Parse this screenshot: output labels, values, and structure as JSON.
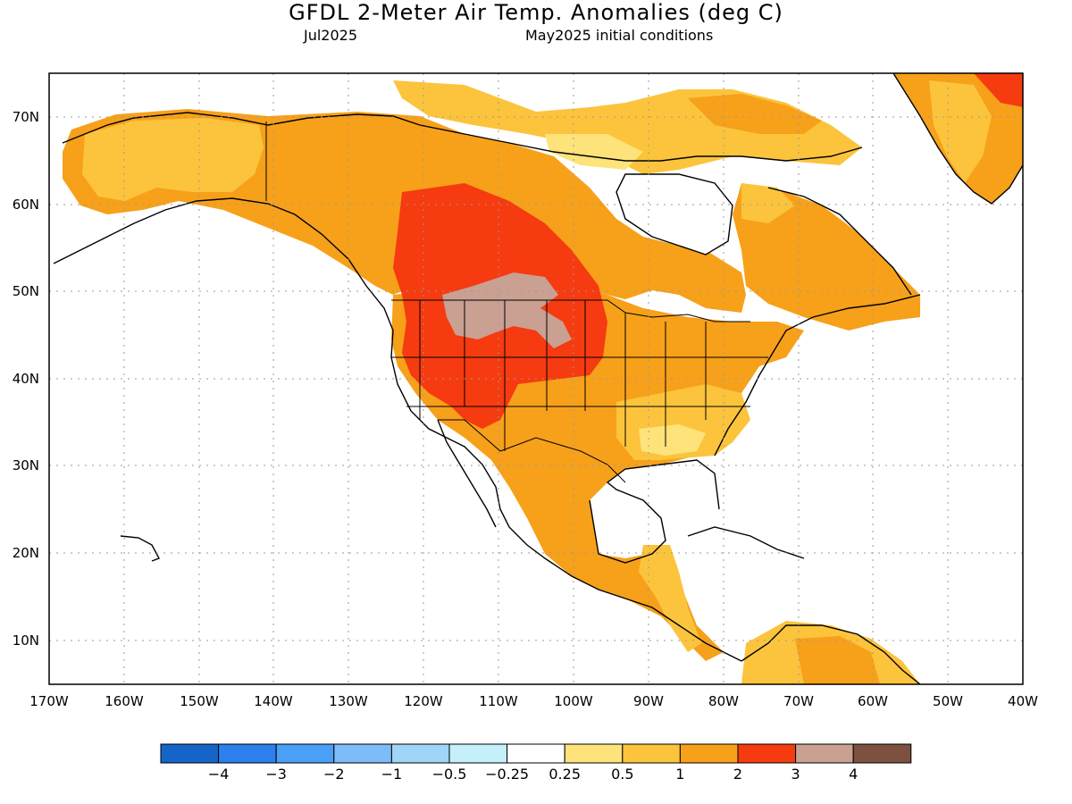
{
  "title": "GFDL 2-Meter Air Temp. Anomalies (deg C)",
  "subtitle_month": "Jul2025",
  "subtitle_ic": "May2025 initial conditions",
  "lat_labels": [
    "70N",
    "60N",
    "50N",
    "40N",
    "30N",
    "20N",
    "10N"
  ],
  "lon_labels": [
    "170W",
    "160W",
    "150W",
    "140W",
    "130W",
    "120W",
    "110W",
    "100W",
    "90W",
    "80W",
    "70W",
    "60W",
    "50W",
    "40W"
  ],
  "colorbar": {
    "colors": [
      "#1565c8",
      "#2b80ee",
      "#4aa0f7",
      "#7dbcf8",
      "#9fd5f7",
      "#c5f0fb",
      "#ffffff",
      "#fde37a",
      "#fbc43c",
      "#f7a01a",
      "#f53b0f",
      "#c9a092",
      "#7d5040"
    ],
    "labels": [
      "−4",
      "−3",
      "−2",
      "−1",
      "−0.5",
      "−0.25",
      "0.25",
      "0.5",
      "1",
      "2",
      "3",
      "4"
    ]
  },
  "palette": {
    "cat_0_25_0_5": "#fde37a",
    "cat_0_5_1": "#fbc43c",
    "cat_1_2": "#f7a01a",
    "cat_2_3": "#f53b0f",
    "cat_3_4": "#c9a092",
    "cat_over_4": "#7d5040"
  }
}
